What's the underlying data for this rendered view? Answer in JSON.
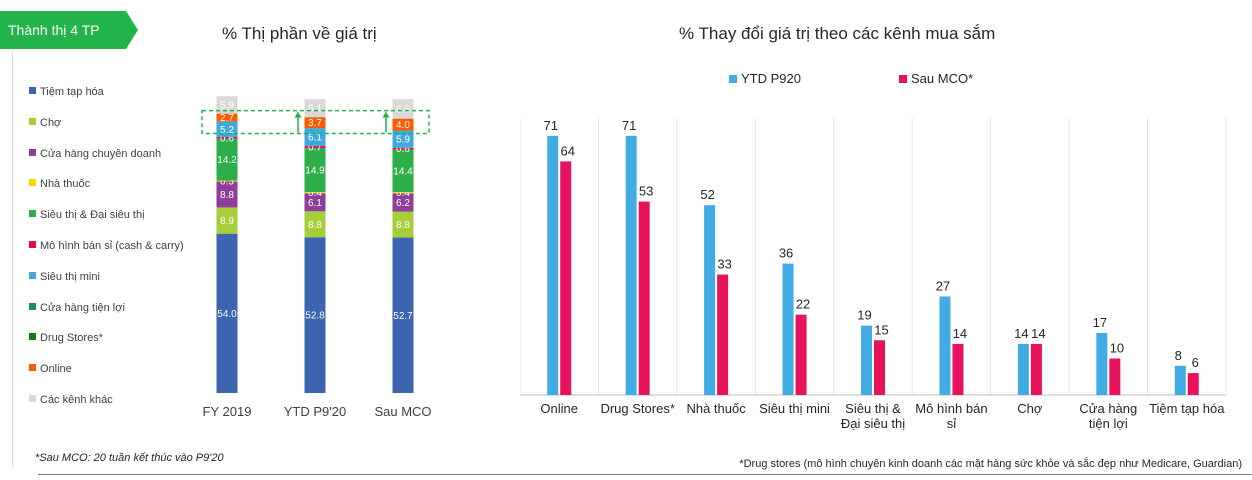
{
  "tag": {
    "label": "Thành thị 4 TP",
    "color": "#22b34b"
  },
  "left_title": "% Thị phần về giá trị",
  "right_title": "% Thay đổi giá trị theo các kênh mua sắm",
  "footnote_left": "*Sau MCO: 20 tuần kết thúc vào P9'20",
  "footnote_right": "*Drug stores (mô hình chuyên kinh doanh các mặt hàng sức khỏe và sắc đẹp như Medicare, Guardian)",
  "chart_data": [
    {
      "type": "bar",
      "stacked": true,
      "title": "% Thị phần về giá trị",
      "categories": [
        "FY 2019",
        "YTD P9'20",
        "Sau MCO"
      ],
      "ylim": [
        0,
        100
      ],
      "legend_position": "left",
      "series": [
        {
          "name": "Tiệm tạp hóa",
          "color": "#3c64b1",
          "values": [
            54.0,
            52.8,
            52.7
          ]
        },
        {
          "name": "Chợ",
          "color": "#a6ce39",
          "values": [
            8.9,
            8.8,
            8.8
          ]
        },
        {
          "name": "Cửa hàng chuyên doanh",
          "color": "#8e3e99",
          "values": [
            8.8,
            6.1,
            6.2
          ]
        },
        {
          "name": "Nhà thuốc",
          "color": "#f5d800",
          "values": [
            0.3,
            0.4,
            0.4
          ]
        },
        {
          "name": "Siêu thị & Đại siêu thị",
          "color": "#2eae48",
          "values": [
            14.2,
            14.9,
            14.4
          ]
        },
        {
          "name": "Mô hình bán sỉ (cash & carry)",
          "color": "#e4103e",
          "values": [
            0.6,
            0.7,
            0.6
          ]
        },
        {
          "name": "Siêu thị mini",
          "color": "#3fa9df",
          "values": [
            5.2,
            6.1,
            5.9
          ]
        },
        {
          "name": "Cửa hàng tiện lợi",
          "color": "#1f8a70",
          "values": [
            0,
            0,
            0
          ]
        },
        {
          "name": "Drug Stores*",
          "color": "#1a7a1a",
          "values": [
            0,
            0,
            0
          ]
        },
        {
          "name": "Online",
          "color": "#ff5a00",
          "values": [
            2.7,
            3.7,
            4.0
          ]
        },
        {
          "name": "Các kênh khác",
          "color": "#d9d9d9",
          "values": [
            5.9,
            6.1,
            6.6
          ]
        }
      ],
      "highlight": {
        "series": "Online",
        "color": "#22b34b",
        "arrows": [
          "YTD P9'20",
          "Sau MCO"
        ]
      }
    },
    {
      "type": "bar",
      "title": "% Thay đổi giá trị theo các kênh mua sắm",
      "categories": [
        "Online",
        "Drug Stores*",
        "Nhà thuốc",
        "Siêu thị mini",
        "Siêu thị & Đại siêu thị",
        "Mô hình bán sỉ",
        "Chợ",
        "Cửa hàng tiện lợi",
        "Tiệm tạp hóa"
      ],
      "ylim": [
        0,
        100
      ],
      "legend_position": "top",
      "grid": true,
      "series": [
        {
          "name": "YTD P920",
          "color": "#40ace3",
          "values": [
            71,
            71,
            52,
            36,
            19,
            27,
            14,
            17,
            8
          ]
        },
        {
          "name": "Sau MCO*",
          "color": "#e8125c",
          "values": [
            64,
            53,
            33,
            22,
            15,
            14,
            14,
            10,
            6
          ]
        }
      ]
    }
  ]
}
